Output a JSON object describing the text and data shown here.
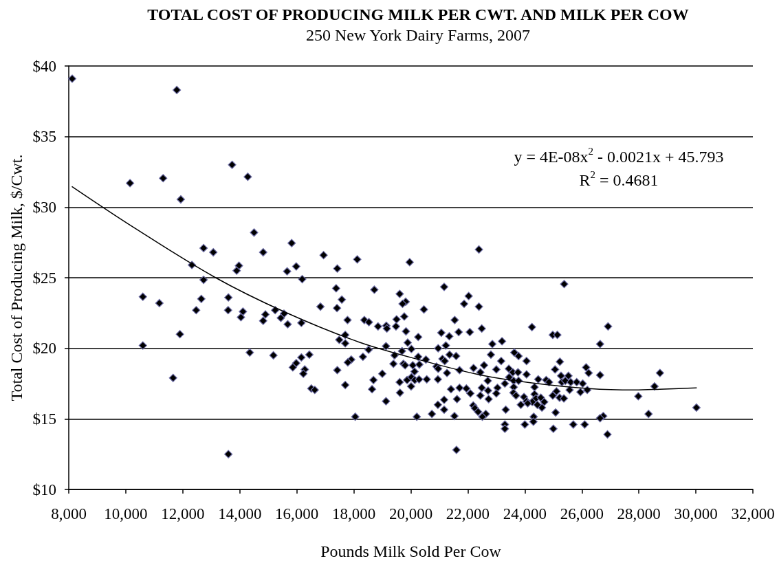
{
  "chart_data": {
    "type": "scatter",
    "title": "TOTAL COST OF PRODUCING MILK PER CWT. AND MILK PER COW",
    "subtitle": "250 New York Dairy Farms, 2007",
    "xlabel": "Pounds Milk Sold Per Cow",
    "ylabel": "Total Cost of Producing Milk, $/Cwt.",
    "annotations": [
      "y = 4E-08x$^{2}$ - 0.0021x + 45.793",
      "R$^{2}$ = 0.4681"
    ],
    "xlim": [
      8000,
      32000
    ],
    "ylim": [
      10,
      40
    ],
    "xticks": [
      {
        "value": 8000,
        "label": "8,000"
      },
      {
        "value": 10000,
        "label": "10,000"
      },
      {
        "value": 12000,
        "label": "12,000"
      },
      {
        "value": 14000,
        "label": "14,000"
      },
      {
        "value": 16000,
        "label": "16,000"
      },
      {
        "value": 18000,
        "label": "18,000"
      },
      {
        "value": 20000,
        "label": "20,000"
      },
      {
        "value": 22000,
        "label": "22,000"
      },
      {
        "value": 24000,
        "label": "24,000"
      },
      {
        "value": 26000,
        "label": "26,000"
      },
      {
        "value": 28000,
        "label": "28,000"
      },
      {
        "value": 30000,
        "label": "30,000"
      },
      {
        "value": 32000,
        "label": "32,000"
      }
    ],
    "yticks": [
      {
        "value": 10,
        "label": "$10"
      },
      {
        "value": 15,
        "label": "$15"
      },
      {
        "value": 20,
        "label": "$20"
      },
      {
        "value": 25,
        "label": "$25"
      },
      {
        "value": 30,
        "label": "$30"
      },
      {
        "value": 35,
        "label": "$35"
      },
      {
        "value": 40,
        "label": "$40"
      }
    ],
    "grid": "y",
    "marker": "diamond",
    "series": [
      {
        "color": "#000000",
        "x": [
          8120,
          11790,
          10150,
          11310,
          11930,
          13730,
          14280,
          14500,
          15820,
          12730,
          13070,
          14820,
          12320,
          13970,
          13890,
          15660,
          15980,
          16190,
          12730,
          10600,
          11180,
          12650,
          13600,
          12470,
          13590,
          14110,
          14040,
          14900,
          14820,
          15240,
          15550,
          15440,
          15680,
          16160,
          11900,
          10600,
          14350,
          15180,
          16160,
          15980,
          15860,
          16280,
          16230,
          11660,
          13600,
          16940,
          18120,
          19960,
          22390,
          17420,
          17380,
          18720,
          21170,
          17580,
          19610,
          19820,
          19710,
          16830,
          17410,
          22030,
          21870,
          22390,
          20460,
          17780,
          18370,
          18530,
          18850,
          19140,
          19160,
          19500,
          19770,
          19480,
          21540,
          19830,
          21070,
          21350,
          21680,
          22070,
          17700,
          17490,
          17700,
          20260,
          19890,
          19130,
          20020,
          19690,
          18520,
          20960,
          21230,
          16440,
          18320,
          19430,
          20260,
          20530,
          21360,
          21590,
          21110,
          21190,
          17910,
          17790,
          19390,
          19740,
          19800,
          20070,
          20300,
          20900,
          20960,
          17420,
          19000,
          20130,
          21270,
          21710,
          22200,
          22440,
          18690,
          19610,
          19870,
          20020,
          20140,
          20290,
          20560,
          20950,
          20010,
          17700,
          16510,
          16630,
          18640,
          19620,
          21410,
          21710,
          21950,
          22090,
          22440,
          19130,
          21170,
          21620,
          20950,
          22190,
          20740,
          21170,
          21530,
          22250,
          22360,
          18050,
          20210,
          25380,
          22490,
          24250,
          24980,
          25140,
          26920,
          22860,
          23200,
          26640,
          22810,
          23630,
          23780,
          22570,
          23170,
          24060,
          23000,
          23440,
          23580,
          23760,
          24060,
          25230,
          25060,
          26150,
          26240,
          26640,
          22700,
          23300,
          23450,
          23610,
          23780,
          24470,
          24340,
          24750,
          24850,
          25270,
          25300,
          25420,
          25530,
          25610,
          25820,
          26030,
          25570,
          25950,
          26190,
          22490,
          23040,
          22710,
          23000,
          23610,
          23600,
          23690,
          24340,
          23970,
          24390,
          24560,
          24680,
          24600,
          24440,
          24260,
          24060,
          23860,
          24100,
          24980,
          25110,
          25220,
          25370,
          22730,
          23330,
          22630,
          22510,
          25080,
          24310,
          26750,
          26640,
          27980,
          28740,
          28550,
          30020,
          28340,
          23300,
          23300,
          24000,
          24300,
          25000,
          25700,
          26100,
          26900,
          21600
        ],
        "values": [
          39.1,
          38.3,
          31.7,
          32.05,
          30.55,
          33.0,
          32.15,
          28.2,
          27.45,
          27.1,
          26.8,
          26.8,
          25.9,
          25.85,
          25.5,
          25.45,
          25.8,
          24.9,
          24.85,
          23.65,
          23.2,
          23.5,
          23.6,
          22.7,
          22.7,
          22.6,
          22.2,
          22.4,
          21.95,
          22.7,
          22.45,
          22.15,
          21.7,
          21.8,
          21.0,
          20.2,
          19.7,
          19.5,
          19.35,
          18.95,
          18.65,
          18.5,
          18.2,
          17.9,
          12.5,
          26.6,
          26.3,
          26.1,
          27.0,
          25.65,
          24.25,
          24.15,
          24.35,
          23.45,
          23.85,
          23.3,
          23.15,
          22.95,
          22.85,
          23.7,
          23.15,
          22.95,
          22.75,
          22.0,
          22.0,
          21.85,
          21.55,
          21.6,
          21.4,
          22.05,
          22.25,
          21.55,
          22.0,
          21.2,
          21.1,
          20.85,
          21.15,
          21.15,
          20.95,
          20.6,
          20.35,
          20.8,
          20.4,
          20.15,
          19.95,
          19.8,
          19.9,
          20.0,
          20.2,
          19.55,
          19.4,
          19.5,
          19.4,
          19.2,
          19.55,
          19.45,
          19.25,
          19.1,
          19.2,
          19.0,
          18.9,
          18.9,
          18.8,
          18.8,
          18.85,
          18.7,
          18.55,
          18.45,
          18.2,
          18.35,
          18.25,
          18.45,
          18.6,
          18.3,
          17.75,
          17.6,
          17.75,
          17.95,
          17.75,
          17.8,
          17.8,
          17.8,
          17.3,
          17.4,
          17.15,
          17.05,
          17.1,
          16.85,
          17.1,
          17.2,
          17.15,
          16.8,
          16.65,
          16.25,
          16.35,
          16.4,
          16.0,
          15.95,
          15.35,
          15.65,
          15.2,
          15.75,
          15.5,
          15.15,
          15.15,
          24.55,
          21.4,
          21.5,
          20.95,
          20.95,
          21.55,
          20.3,
          20.5,
          20.3,
          19.55,
          19.7,
          19.45,
          18.8,
          19.1,
          19.1,
          18.5,
          18.55,
          18.3,
          18.3,
          18.15,
          19.05,
          18.5,
          18.65,
          18.25,
          18.1,
          17.7,
          17.5,
          17.95,
          17.7,
          17.7,
          17.8,
          17.25,
          17.75,
          17.6,
          18.05,
          17.6,
          17.7,
          18.05,
          17.6,
          17.6,
          17.5,
          17.05,
          16.9,
          17.05,
          17.2,
          17.2,
          17.0,
          16.8,
          17.25,
          16.85,
          16.65,
          16.75,
          16.55,
          16.45,
          16.5,
          16.2,
          15.8,
          16.0,
          16.2,
          16.25,
          16.0,
          16.1,
          16.65,
          16.95,
          16.5,
          16.45,
          16.4,
          15.65,
          15.35,
          15.15,
          15.45,
          15.15,
          15.2,
          15.05,
          16.6,
          18.25,
          17.3,
          15.8,
          15.35,
          14.6,
          14.3,
          14.6,
          14.8,
          14.3,
          14.6,
          14.6,
          13.9,
          12.8
        ]
      },
      {
        "type": "line",
        "color": "#000000",
        "marker": "none",
        "line_style": "solid",
        "x": [
          8120,
          10290,
          13110,
          15600,
          18170,
          20460,
          22470,
          24240,
          26250,
          27860,
          28740,
          30020
        ],
        "values": [
          31.45,
          28.55,
          25.05,
          22.55,
          20.45,
          19.1,
          18.1,
          17.55,
          17.15,
          17.05,
          17.1,
          17.2
        ]
      }
    ]
  }
}
